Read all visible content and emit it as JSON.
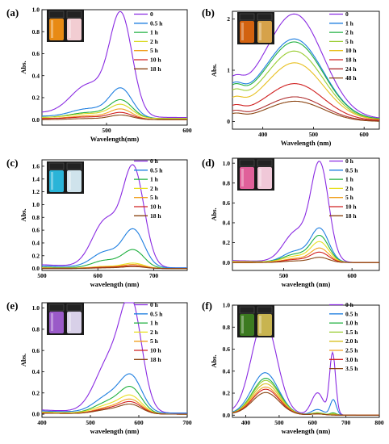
{
  "figure": {
    "panels": [
      {
        "label": "(a)"
      },
      {
        "label": "(b)"
      },
      {
        "label": "(c)"
      },
      {
        "label": "(d)"
      },
      {
        "label": "(e)"
      },
      {
        "label": "(f)"
      }
    ]
  },
  "chart_data": [
    {
      "panel": "(a)",
      "type": "line",
      "xlabel": "Wavelength(nm)",
      "ylabel": "Abs.",
      "xlim": [
        420,
        600
      ],
      "ylim": [
        -0.05,
        1.0
      ],
      "xticks": [
        500,
        600
      ],
      "xticklabels": [
        "500",
        "600"
      ],
      "yticks": [
        0.0,
        0.2,
        0.4,
        0.6,
        0.8,
        1.0
      ],
      "yticklabels": [
        "0.0",
        "0.2",
        "0.4",
        "0.6",
        "0.8",
        "1.0"
      ],
      "legend_position": "top-right",
      "vial_colors": [
        "#e88a14",
        "#f2cdd2"
      ],
      "series": [
        {
          "name": "0",
          "color": "#8a2be2",
          "peak_x": 518,
          "peak_y": 0.9,
          "base_y": 0.06,
          "sig": 14,
          "shoulder_x": 478,
          "shoulder_y": 0.28,
          "sig2": 22,
          "tail_y": 0.02
        },
        {
          "name": "0.5 h",
          "color": "#1f7fe0",
          "peak_x": 518,
          "peak_y": 0.26,
          "base_y": 0.03,
          "sig": 14,
          "shoulder_x": 478,
          "shoulder_y": 0.08,
          "sig2": 22,
          "tail_y": 0.01
        },
        {
          "name": "1 h",
          "color": "#20b040",
          "peak_x": 518,
          "peak_y": 0.16,
          "base_y": 0.02,
          "sig": 14,
          "shoulder_x": 478,
          "shoulder_y": 0.05,
          "sig2": 22,
          "tail_y": 0.01
        },
        {
          "name": "2 h",
          "color": "#d8d820",
          "peak_x": 518,
          "peak_y": 0.12,
          "base_y": 0.02,
          "sig": 14,
          "shoulder_x": 478,
          "shoulder_y": 0.04,
          "sig2": 22,
          "tail_y": 0.01
        },
        {
          "name": "5 h",
          "color": "#f0a020",
          "peak_x": 518,
          "peak_y": 0.09,
          "base_y": 0.01,
          "sig": 14,
          "shoulder_x": 478,
          "shoulder_y": 0.03,
          "sig2": 22,
          "tail_y": 0.0
        },
        {
          "name": "10 h",
          "color": "#d02020",
          "peak_x": 518,
          "peak_y": 0.06,
          "base_y": 0.01,
          "sig": 14,
          "shoulder_x": 478,
          "shoulder_y": 0.02,
          "sig2": 22,
          "tail_y": 0.0
        },
        {
          "name": "18 h",
          "color": "#8b4513",
          "peak_x": 518,
          "peak_y": 0.04,
          "base_y": 0.0,
          "sig": 14,
          "shoulder_x": 478,
          "shoulder_y": 0.01,
          "sig2": 22,
          "tail_y": 0.0
        }
      ]
    },
    {
      "panel": "(b)",
      "type": "line",
      "xlabel": "Wavelength (nm)",
      "ylabel": "Abs.",
      "xlim": [
        340,
        630
      ],
      "ylim": [
        -0.15,
        2.15
      ],
      "xticks": [
        400,
        500,
        600
      ],
      "xticklabels": [
        "400",
        "500",
        "600"
      ],
      "yticks": [
        0,
        1,
        2
      ],
      "yticklabels": [
        "0",
        "1",
        "2"
      ],
      "legend_position": "top-right",
      "vial_colors": [
        "#d2620f",
        "#d6a24a"
      ],
      "series": [
        {
          "name": "0",
          "color": "#8a2be2",
          "peak_x": 465,
          "peak_y": 1.9,
          "base_y": 0.55,
          "sig": 55,
          "shoulder_x": 345,
          "shoulder_y": 0.2,
          "sig2": 15,
          "tail_y": 0.05
        },
        {
          "name": "1 h",
          "color": "#1f7fe0",
          "peak_x": 465,
          "peak_y": 1.45,
          "base_y": 0.45,
          "sig": 55,
          "shoulder_x": 345,
          "shoulder_y": 0.2,
          "sig2": 15,
          "tail_y": 0.04
        },
        {
          "name": "2 h",
          "color": "#20b040",
          "peak_x": 465,
          "peak_y": 1.4,
          "base_y": 0.42,
          "sig": 55,
          "shoulder_x": 345,
          "shoulder_y": 0.2,
          "sig2": 15,
          "tail_y": 0.04
        },
        {
          "name": "5 h",
          "color": "#9acd32",
          "peak_x": 465,
          "peak_y": 1.25,
          "base_y": 0.35,
          "sig": 55,
          "shoulder_x": 345,
          "shoulder_y": 0.18,
          "sig2": 15,
          "tail_y": 0.03
        },
        {
          "name": "10 h",
          "color": "#e8c020",
          "peak_x": 465,
          "peak_y": 1.05,
          "base_y": 0.25,
          "sig": 55,
          "shoulder_x": 345,
          "shoulder_y": 0.15,
          "sig2": 15,
          "tail_y": 0.03
        },
        {
          "name": "18 h",
          "color": "#d02020",
          "peak_x": 465,
          "peak_y": 0.68,
          "base_y": 0.15,
          "sig": 55,
          "shoulder_x": 345,
          "shoulder_y": 0.12,
          "sig2": 15,
          "tail_y": 0.02
        },
        {
          "name": "24 h",
          "color": "#b03030",
          "peak_x": 465,
          "peak_y": 0.45,
          "base_y": 0.08,
          "sig": 55,
          "shoulder_x": 345,
          "shoulder_y": 0.1,
          "sig2": 15,
          "tail_y": 0.01
        },
        {
          "name": "48 h",
          "color": "#8b4513",
          "peak_x": 465,
          "peak_y": 0.38,
          "base_y": 0.05,
          "sig": 55,
          "shoulder_x": 345,
          "shoulder_y": 0.08,
          "sig2": 15,
          "tail_y": 0.0
        }
      ]
    },
    {
      "panel": "(c)",
      "type": "line",
      "xlabel": "wavelength (nm)",
      "ylabel": "Abs.",
      "xlim": [
        500,
        760
      ],
      "ylim": [
        -0.03,
        1.7
      ],
      "xticks": [
        500,
        600,
        700
      ],
      "xticklabels": [
        "500",
        "600",
        "700"
      ],
      "yticks": [
        0.0,
        0.2,
        0.4,
        0.6,
        0.8,
        1.0,
        1.2,
        1.4,
        1.6
      ],
      "yticklabels": [
        "0.0",
        "0.2",
        "0.4",
        "0.6",
        "0.8",
        "1.0",
        "1.2",
        "1.4",
        "1.6"
      ],
      "legend_position": "top-right",
      "vial_colors": [
        "#2ab4d8",
        "#cfe3ec"
      ],
      "series": [
        {
          "name": "0 h",
          "color": "#8a2be2",
          "peak_x": 664,
          "peak_y": 1.52,
          "base_y": 0.06,
          "sig": 19,
          "shoulder_x": 614,
          "shoulder_y": 0.72,
          "sig2": 24,
          "tail_y": 0.01
        },
        {
          "name": "0.5 h",
          "color": "#1f7fe0",
          "peak_x": 664,
          "peak_y": 0.58,
          "base_y": 0.04,
          "sig": 19,
          "shoulder_x": 614,
          "shoulder_y": 0.24,
          "sig2": 24,
          "tail_y": 0.01
        },
        {
          "name": "1 h",
          "color": "#20b040",
          "peak_x": 664,
          "peak_y": 0.28,
          "base_y": 0.02,
          "sig": 19,
          "shoulder_x": 614,
          "shoulder_y": 0.12,
          "sig2": 24,
          "tail_y": 0.0
        },
        {
          "name": "2 h",
          "color": "#e8e020",
          "peak_x": 664,
          "peak_y": 0.08,
          "base_y": 0.01,
          "sig": 19,
          "shoulder_x": 614,
          "shoulder_y": 0.03,
          "sig2": 24,
          "tail_y": 0.0
        },
        {
          "name": "5 h",
          "color": "#f0a020",
          "peak_x": 664,
          "peak_y": 0.06,
          "base_y": 0.01,
          "sig": 19,
          "shoulder_x": 614,
          "shoulder_y": 0.02,
          "sig2": 24,
          "tail_y": 0.0
        },
        {
          "name": "10 h",
          "color": "#d02020",
          "peak_x": 664,
          "peak_y": 0.04,
          "base_y": 0.0,
          "sig": 19,
          "shoulder_x": 614,
          "shoulder_y": 0.02,
          "sig2": 24,
          "tail_y": 0.0
        },
        {
          "name": "18 h",
          "color": "#8b4513",
          "peak_x": 664,
          "peak_y": 0.03,
          "base_y": 0.0,
          "sig": 19,
          "shoulder_x": 614,
          "shoulder_y": 0.01,
          "sig2": 24,
          "tail_y": 0.0
        }
      ]
    },
    {
      "panel": "(d)",
      "type": "line",
      "xlabel": "wavelength (nm)",
      "ylabel": "Abs.",
      "xlim": [
        425,
        640
      ],
      "ylim": [
        -0.08,
        1.05
      ],
      "xticks": [
        500,
        600
      ],
      "xticklabels": [
        "500",
        "600"
      ],
      "yticks": [
        0.0,
        0.2,
        0.4,
        0.6,
        0.8,
        1.0
      ],
      "yticklabels": [
        "0.0",
        "0.2",
        "0.4",
        "0.6",
        "0.8",
        "1.0"
      ],
      "legend_position": "top-right",
      "vial_colors": [
        "#e0609a",
        "#f0c8d8"
      ],
      "series": [
        {
          "name": "0 h",
          "color": "#8a2be2",
          "peak_x": 553,
          "peak_y": 0.97,
          "base_y": 0.02,
          "sig": 13,
          "shoulder_x": 518,
          "shoulder_y": 0.3,
          "sig2": 18,
          "tail_y": 0.0
        },
        {
          "name": "0.5 h",
          "color": "#1f7fe0",
          "peak_x": 553,
          "peak_y": 0.33,
          "base_y": 0.01,
          "sig": 13,
          "shoulder_x": 518,
          "shoulder_y": 0.11,
          "sig2": 18,
          "tail_y": 0.0
        },
        {
          "name": "1 h",
          "color": "#20b040",
          "peak_x": 553,
          "peak_y": 0.26,
          "base_y": 0.01,
          "sig": 13,
          "shoulder_x": 518,
          "shoulder_y": 0.08,
          "sig2": 18,
          "tail_y": 0.0
        },
        {
          "name": "2 h",
          "color": "#e8e020",
          "peak_x": 553,
          "peak_y": 0.2,
          "base_y": 0.01,
          "sig": 13,
          "shoulder_x": 518,
          "shoulder_y": 0.06,
          "sig2": 18,
          "tail_y": 0.0
        },
        {
          "name": "5 h",
          "color": "#f0a020",
          "peak_x": 553,
          "peak_y": 0.14,
          "base_y": 0.0,
          "sig": 13,
          "shoulder_x": 518,
          "shoulder_y": 0.04,
          "sig2": 18,
          "tail_y": 0.0
        },
        {
          "name": "10 h",
          "color": "#d02020",
          "peak_x": 553,
          "peak_y": 0.1,
          "base_y": 0.0,
          "sig": 13,
          "shoulder_x": 518,
          "shoulder_y": 0.03,
          "sig2": 18,
          "tail_y": 0.0
        },
        {
          "name": "18 h",
          "color": "#8b4513",
          "peak_x": 553,
          "peak_y": 0.05,
          "base_y": 0.0,
          "sig": 13,
          "shoulder_x": 518,
          "shoulder_y": 0.015,
          "sig2": 18,
          "tail_y": 0.0
        }
      ]
    },
    {
      "panel": "(e)",
      "type": "line",
      "xlabel": "wavelength (nm)",
      "ylabel": "Abs.",
      "xlim": [
        400,
        700
      ],
      "ylim": [
        -0.03,
        1.05
      ],
      "xticks": [
        400,
        500,
        600,
        700
      ],
      "xticklabels": [
        "400",
        "500",
        "600",
        "700"
      ],
      "yticks": [
        0.0,
        0.2,
        0.4,
        0.6,
        0.8,
        1.0
      ],
      "yticklabels": [
        "0.0",
        "0.2",
        "0.4",
        "0.6",
        "0.8",
        "1.0"
      ],
      "legend_position": "top-right",
      "vial_colors": [
        "#9a5ac8",
        "#d8d0e8"
      ],
      "series": [
        {
          "name": "0 h",
          "color": "#8a2be2",
          "peak_x": 585,
          "peak_y": 0.94,
          "base_y": 0.04,
          "sig": 22,
          "shoulder_x": 540,
          "shoulder_y": 0.48,
          "sig2": 30,
          "tail_y": 0.01
        },
        {
          "name": "0.5 h",
          "color": "#1f7fe0",
          "peak_x": 585,
          "peak_y": 0.31,
          "base_y": 0.03,
          "sig": 22,
          "shoulder_x": 540,
          "shoulder_y": 0.16,
          "sig2": 30,
          "tail_y": 0.01
        },
        {
          "name": "1 h",
          "color": "#20b040",
          "peak_x": 585,
          "peak_y": 0.22,
          "base_y": 0.02,
          "sig": 22,
          "shoulder_x": 540,
          "shoulder_y": 0.11,
          "sig2": 30,
          "tail_y": 0.0
        },
        {
          "name": "2 h",
          "color": "#e8e020",
          "peak_x": 585,
          "peak_y": 0.15,
          "base_y": 0.02,
          "sig": 22,
          "shoulder_x": 540,
          "shoulder_y": 0.08,
          "sig2": 30,
          "tail_y": 0.0
        },
        {
          "name": "5 h",
          "color": "#f0a020",
          "peak_x": 585,
          "peak_y": 0.12,
          "base_y": 0.01,
          "sig": 22,
          "shoulder_x": 540,
          "shoulder_y": 0.06,
          "sig2": 30,
          "tail_y": 0.0
        },
        {
          "name": "10 h",
          "color": "#d02020",
          "peak_x": 585,
          "peak_y": 0.1,
          "base_y": 0.01,
          "sig": 22,
          "shoulder_x": 540,
          "shoulder_y": 0.05,
          "sig2": 30,
          "tail_y": 0.0
        },
        {
          "name": "18 h",
          "color": "#8b4513",
          "peak_x": 585,
          "peak_y": 0.08,
          "base_y": 0.01,
          "sig": 22,
          "shoulder_x": 540,
          "shoulder_y": 0.04,
          "sig2": 30,
          "tail_y": 0.0
        }
      ]
    },
    {
      "panel": "(f)",
      "type": "line",
      "xlabel": "wavelength (nm)",
      "ylabel": "Abs.",
      "xlim": [
        360,
        800
      ],
      "ylim": [
        -0.02,
        1.0
      ],
      "xticks": [
        400,
        500,
        600,
        700,
        800
      ],
      "xticklabels": [
        "400",
        "500",
        "600",
        "700",
        "800"
      ],
      "yticks": [
        0.0,
        0.2,
        0.4,
        0.6,
        0.8,
        1.0
      ],
      "yticklabels": [
        "0.0",
        "0.2",
        "0.4",
        "0.6",
        "0.8",
        "1.0"
      ],
      "legend_position": "top-right",
      "vial_colors": [
        "#3c7a20",
        "#c8b450"
      ],
      "series": [
        {
          "name": "0 h",
          "color": "#8a2be2",
          "peak_x": 455,
          "peak_y": 0.85,
          "base_y": 0.02,
          "sig": 38,
          "shoulder_x": 660,
          "shoulder_y": 0.56,
          "sig2": 9,
          "tail_y": 0.0,
          "third_x": 615,
          "third_y": 0.2,
          "sig3": 18
        },
        {
          "name": "0.5 h",
          "color": "#1f7fe0",
          "peak_x": 458,
          "peak_y": 0.38,
          "base_y": 0.01,
          "sig": 40,
          "shoulder_x": 662,
          "shoulder_y": 0.14,
          "sig2": 9,
          "tail_y": 0.0,
          "third_x": 615,
          "third_y": 0.05,
          "sig3": 18
        },
        {
          "name": "1.0 h",
          "color": "#20b040",
          "peak_x": 460,
          "peak_y": 0.33,
          "base_y": 0.01,
          "sig": 40,
          "shoulder_x": 662,
          "shoulder_y": 0.02,
          "sig2": 9,
          "tail_y": 0.0,
          "third_x": 615,
          "third_y": 0.02,
          "sig3": 18
        },
        {
          "name": "1.5 h",
          "color": "#9acd32",
          "peak_x": 460,
          "peak_y": 0.31,
          "base_y": 0.01,
          "sig": 40,
          "shoulder_x": 662,
          "shoulder_y": 0.01,
          "sig2": 9,
          "tail_y": 0.0,
          "third_x": 615,
          "third_y": 0.02,
          "sig3": 18
        },
        {
          "name": "2.0 h",
          "color": "#d8c020",
          "peak_x": 460,
          "peak_y": 0.28,
          "base_y": 0.01,
          "sig": 40,
          "shoulder_x": 662,
          "shoulder_y": 0.01,
          "sig2": 9,
          "tail_y": 0.0,
          "third_x": 615,
          "third_y": 0.01,
          "sig3": 18
        },
        {
          "name": "2.5 h",
          "color": "#f0a020",
          "peak_x": 460,
          "peak_y": 0.25,
          "base_y": 0.01,
          "sig": 40,
          "shoulder_x": 662,
          "shoulder_y": 0.0,
          "sig2": 9,
          "tail_y": 0.0,
          "third_x": 615,
          "third_y": 0.01,
          "sig3": 18
        },
        {
          "name": "3.0 h",
          "color": "#d02020",
          "peak_x": 460,
          "peak_y": 0.23,
          "base_y": 0.01,
          "sig": 40,
          "shoulder_x": 662,
          "shoulder_y": 0.0,
          "sig2": 9,
          "tail_y": 0.0,
          "third_x": 615,
          "third_y": 0.01,
          "sig3": 18
        },
        {
          "name": "3.5 h",
          "color": "#8b4513",
          "peak_x": 460,
          "peak_y": 0.2,
          "base_y": 0.01,
          "sig": 40,
          "shoulder_x": 662,
          "shoulder_y": 0.0,
          "sig2": 9,
          "tail_y": 0.0,
          "third_x": 615,
          "third_y": 0.01,
          "sig3": 18
        }
      ]
    }
  ]
}
